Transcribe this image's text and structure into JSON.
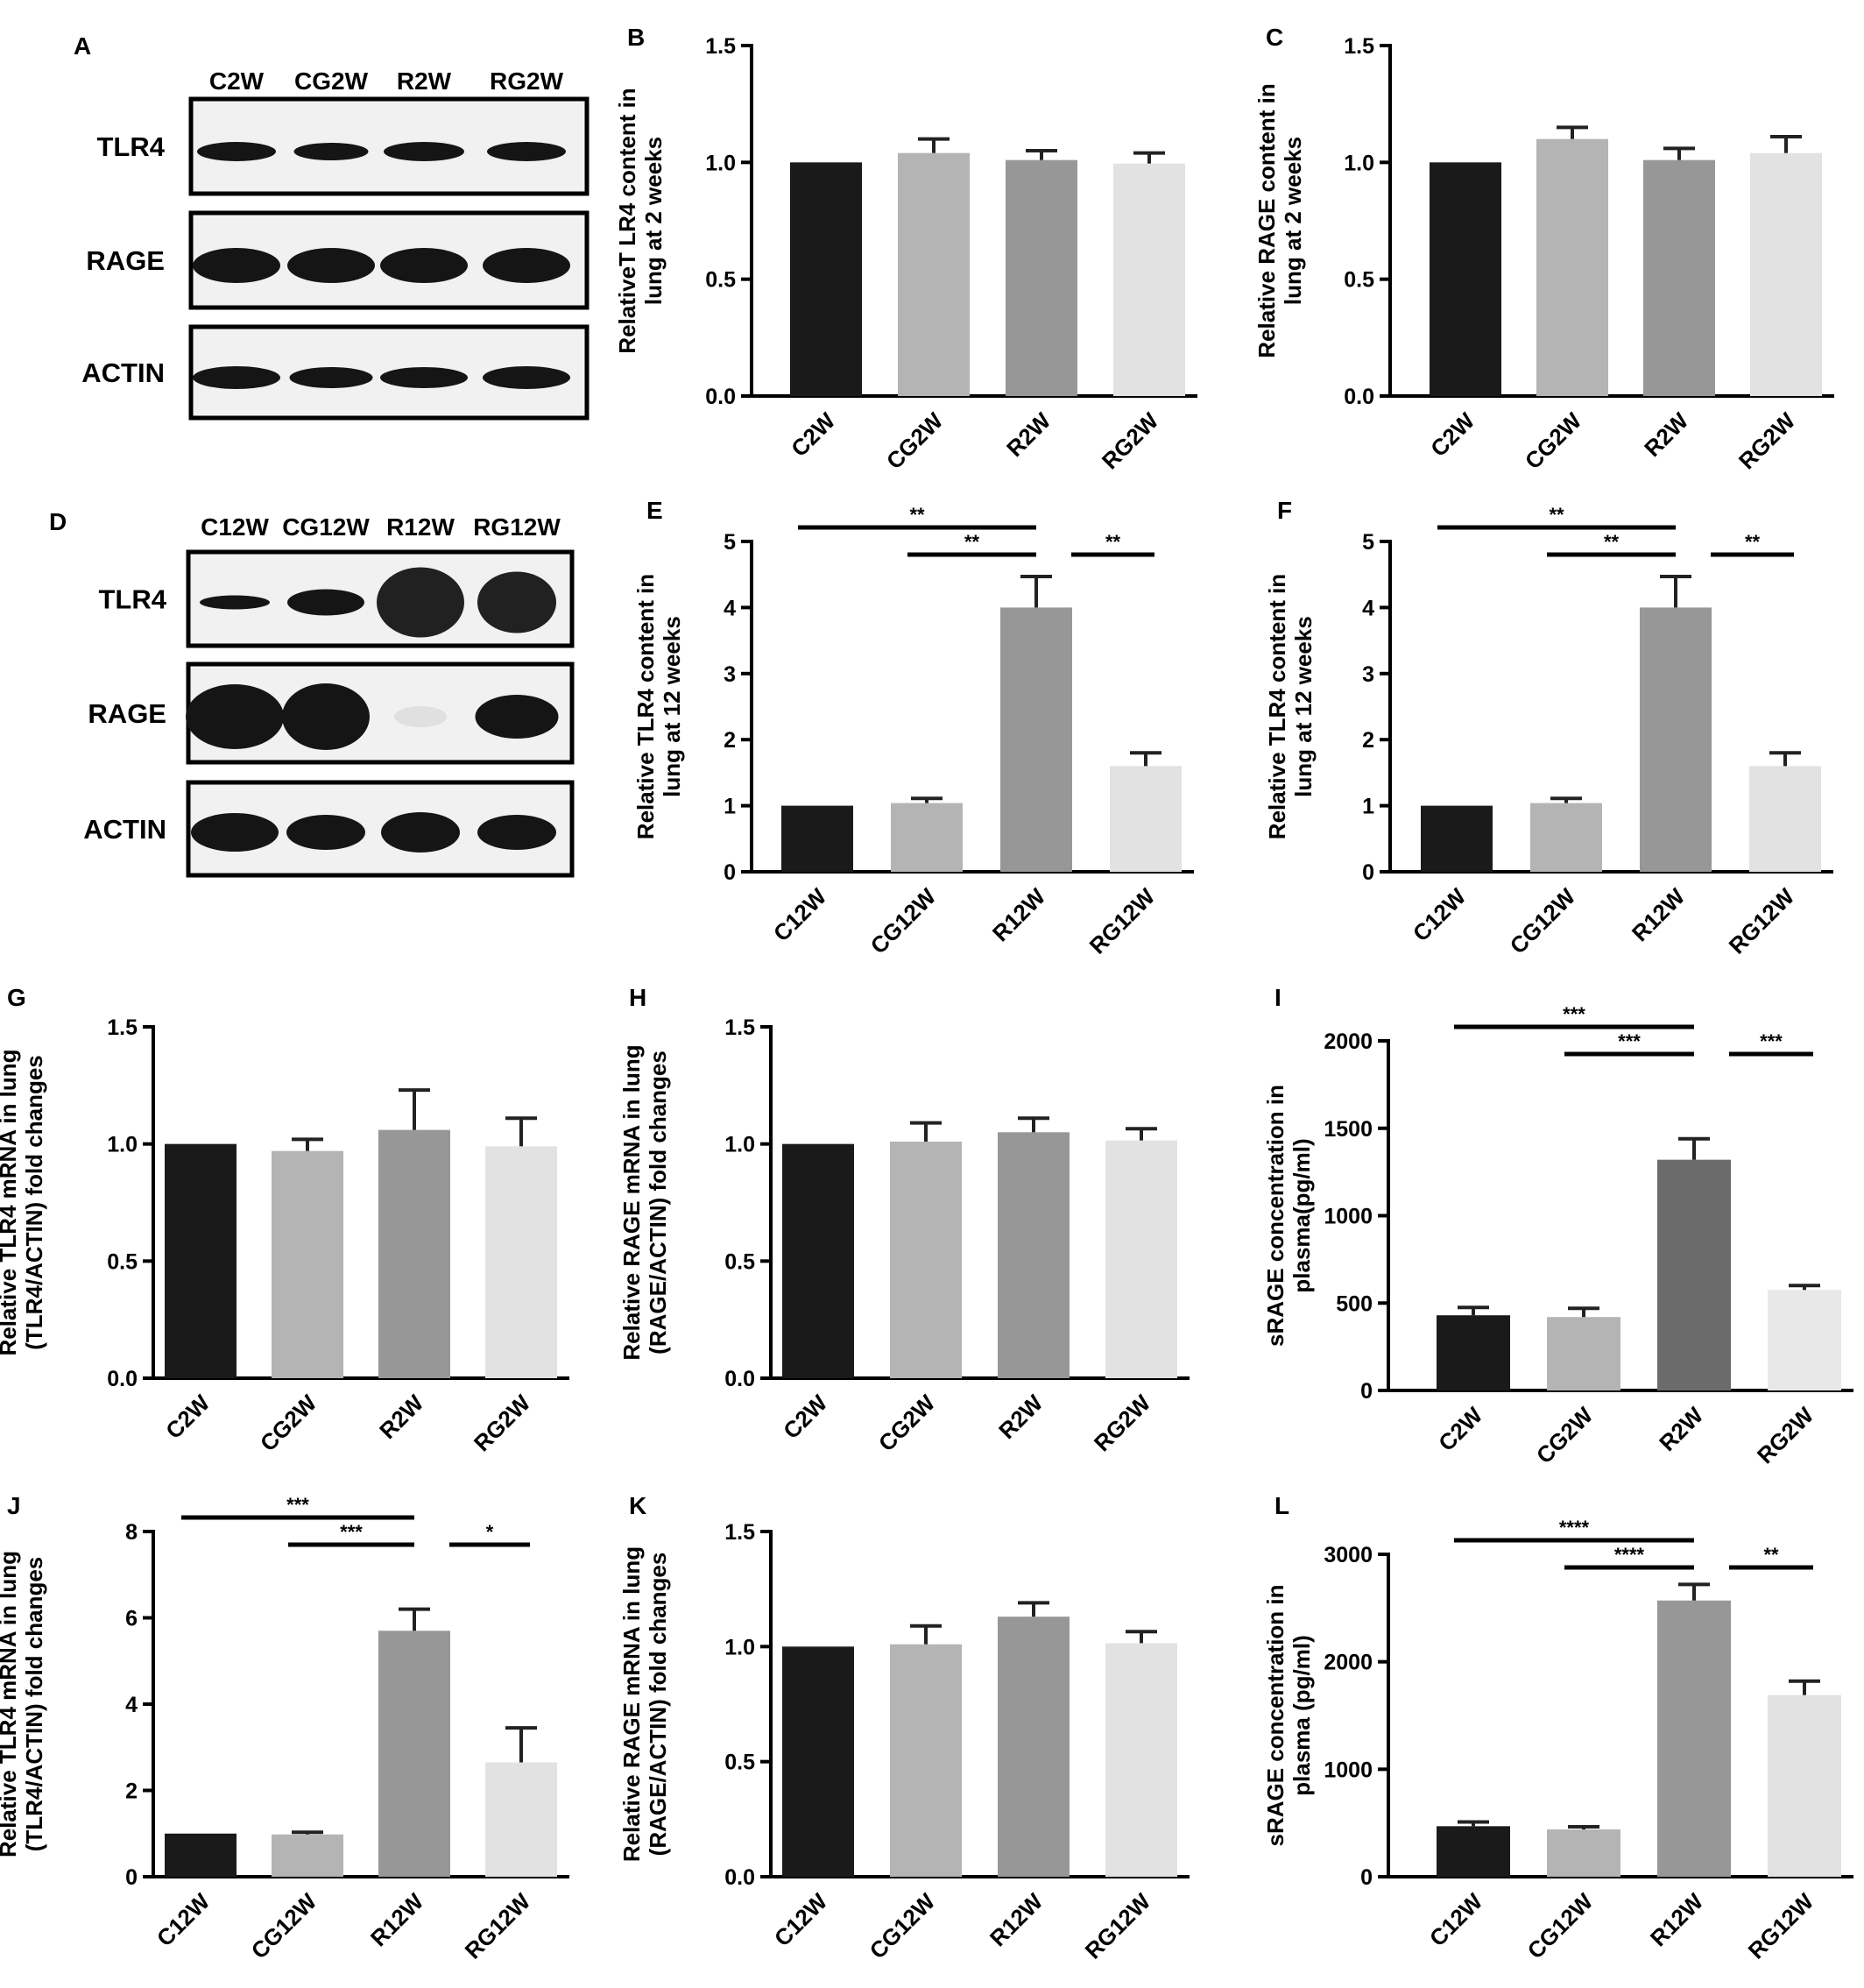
{
  "blots": [
    {
      "label": "A",
      "lanes": [
        "C2W",
        "CG2W",
        "R2W",
        "RG2W"
      ],
      "rows": [
        {
          "name": "TLR4"
        },
        {
          "name": "RAGE"
        },
        {
          "name": "ACTIN"
        }
      ]
    },
    {
      "label": "D",
      "lanes": [
        "C12W",
        "CG12W",
        "R12W",
        "RG12W"
      ],
      "rows": [
        {
          "name": "TLR4"
        },
        {
          "name": "RAGE"
        },
        {
          "name": "ACTIN"
        }
      ]
    }
  ],
  "chart_data": [
    {
      "label": "B",
      "type": "bar",
      "ylabel": [
        "RelativeT LR4 content in",
        "lung at 2 weeks"
      ],
      "categories": [
        "C2W",
        "CG2W",
        "R2W",
        "RG2W"
      ],
      "values": [
        1.0,
        1.04,
        1.01,
        0.995
      ],
      "errors": [
        0,
        0.06,
        0.04,
        0.045
      ],
      "ylim": [
        0,
        1.5
      ],
      "yticks": [
        "0.0",
        "0.5",
        "1.0",
        "1.5"
      ],
      "colors": [
        "#1a1a1a",
        "#b4b4b4",
        "#979797",
        "#e2e2e2"
      ],
      "sig": []
    },
    {
      "label": "C",
      "type": "bar",
      "ylabel": [
        "Relative RAGE content in",
        "lung at 2 weeks"
      ],
      "categories": [
        "C2W",
        "CG2W",
        "R2W",
        "RG2W"
      ],
      "values": [
        1.0,
        1.1,
        1.01,
        1.04
      ],
      "errors": [
        0,
        0.05,
        0.05,
        0.07
      ],
      "ylim": [
        0,
        1.5
      ],
      "yticks": [
        "0.0",
        "0.5",
        "1.0",
        "1.5"
      ],
      "colors": [
        "#1a1a1a",
        "#b4b4b4",
        "#979797",
        "#e2e2e2"
      ],
      "sig": []
    },
    {
      "label": "E",
      "type": "bar",
      "ylabel": [
        "Relative TLR4 content in",
        "lung at 12 weeks"
      ],
      "categories": [
        "C12W",
        "CG12W",
        "R12W",
        "RG12W"
      ],
      "values": [
        1.0,
        1.04,
        4.0,
        1.6
      ],
      "errors": [
        0,
        0.07,
        0.47,
        0.2
      ],
      "ylim": [
        0,
        5
      ],
      "yticks": [
        "0",
        "1",
        "2",
        "3",
        "4",
        "5"
      ],
      "colors": [
        "#1a1a1a",
        "#b4b4b4",
        "#979797",
        "#e2e2e2"
      ],
      "sig": [
        {
          "from": 0,
          "to": 2,
          "level": 0,
          "text": "**"
        },
        {
          "from": 1,
          "to": 2,
          "level": 1,
          "text": "**"
        },
        {
          "from": 2,
          "to": 3,
          "level": 1,
          "text": "**"
        }
      ]
    },
    {
      "label": "F",
      "type": "bar",
      "ylabel": [
        "Relative TLR4 content in",
        "lung at 12 weeks"
      ],
      "categories": [
        "C12W",
        "CG12W",
        "R12W",
        "RG12W"
      ],
      "values": [
        1.0,
        1.04,
        4.0,
        1.6
      ],
      "errors": [
        0,
        0.07,
        0.47,
        0.2
      ],
      "ylim": [
        0,
        5
      ],
      "yticks": [
        "0",
        "1",
        "2",
        "3",
        "4",
        "5"
      ],
      "colors": [
        "#1a1a1a",
        "#b4b4b4",
        "#979797",
        "#e2e2e2"
      ],
      "sig": [
        {
          "from": 0,
          "to": 2,
          "level": 0,
          "text": "**"
        },
        {
          "from": 1,
          "to": 2,
          "level": 1,
          "text": "**"
        },
        {
          "from": 2,
          "to": 3,
          "level": 1,
          "text": "**"
        }
      ]
    },
    {
      "label": "G",
      "type": "bar",
      "ylabel": [
        "Relative TLR4 mRNA in lung",
        "(TLR4/ACTIN) fold changes"
      ],
      "categories": [
        "C2W",
        "CG2W",
        "R2W",
        "RG2W"
      ],
      "values": [
        1.0,
        0.97,
        1.06,
        0.99
      ],
      "errors": [
        0,
        0.05,
        0.17,
        0.12
      ],
      "ylim": [
        0,
        1.5
      ],
      "yticks": [
        "0.0",
        "0.5",
        "1.0",
        "1.5"
      ],
      "colors": [
        "#1a1a1a",
        "#b4b4b4",
        "#979797",
        "#e2e2e2"
      ],
      "sig": []
    },
    {
      "label": "H",
      "type": "bar",
      "ylabel": [
        "Relative RAGE mRNA in lung",
        "(RAGE/ACTIN) fold changes"
      ],
      "categories": [
        "C2W",
        "CG2W",
        "R2W",
        "RG2W"
      ],
      "values": [
        1.0,
        1.01,
        1.05,
        1.015
      ],
      "errors": [
        0,
        0.08,
        0.06,
        0.05
      ],
      "ylim": [
        0,
        1.5
      ],
      "yticks": [
        "0.0",
        "0.5",
        "1.0",
        "1.5"
      ],
      "colors": [
        "#1a1a1a",
        "#b4b4b4",
        "#979797",
        "#e2e2e2"
      ],
      "sig": []
    },
    {
      "label": "I",
      "type": "bar",
      "ylabel": [
        "sRAGE concentration in",
        "plasma(pg/ml)"
      ],
      "categories": [
        "C2W",
        "CG2W",
        "R2W",
        "RG2W"
      ],
      "values": [
        430,
        420,
        1320,
        575
      ],
      "errors": [
        45,
        50,
        120,
        25
      ],
      "ylim": [
        0,
        2000
      ],
      "yticks": [
        "0",
        "500",
        "1000",
        "1500",
        "2000"
      ],
      "colors": [
        "#1a1a1a",
        "#b4b4b4",
        "#6b6b6b",
        "#e8e8e8"
      ],
      "sig": [
        {
          "from": 0,
          "to": 2,
          "level": 0,
          "text": "***"
        },
        {
          "from": 1,
          "to": 2,
          "level": 1,
          "text": "***"
        },
        {
          "from": 2,
          "to": 3,
          "level": 1,
          "text": "***"
        }
      ]
    },
    {
      "label": "J",
      "type": "bar",
      "ylabel": [
        "Relative TLR4 mRNA in lung",
        "(TLR4/ACTIN) fold changes"
      ],
      "categories": [
        "C12W",
        "CG12W",
        "R12W",
        "RG12W"
      ],
      "values": [
        1.0,
        0.98,
        5.7,
        2.65
      ],
      "errors": [
        0,
        0.05,
        0.5,
        0.8
      ],
      "ylim": [
        0,
        8
      ],
      "yticks": [
        "0",
        "2",
        "4",
        "6",
        "8"
      ],
      "colors": [
        "#1a1a1a",
        "#b4b4b4",
        "#979797",
        "#e2e2e2"
      ],
      "sig": [
        {
          "from": 0,
          "to": 2,
          "level": 0,
          "text": "***"
        },
        {
          "from": 1,
          "to": 2,
          "level": 1,
          "text": "***"
        },
        {
          "from": 2,
          "to": 3,
          "level": 1,
          "text": "*"
        }
      ]
    },
    {
      "label": "K",
      "type": "bar",
      "ylabel": [
        "Relative RAGE mRNA in lung",
        "(RAGE/ACTIN) fold changes"
      ],
      "categories": [
        "C12W",
        "CG12W",
        "R12W",
        "RG12W"
      ],
      "values": [
        1.0,
        1.01,
        1.13,
        1.015
      ],
      "errors": [
        0,
        0.08,
        0.06,
        0.05
      ],
      "ylim": [
        0,
        1.5
      ],
      "yticks": [
        "0.0",
        "0.5",
        "1.0",
        "1.5"
      ],
      "colors": [
        "#1a1a1a",
        "#b4b4b4",
        "#979797",
        "#e2e2e2"
      ],
      "sig": []
    },
    {
      "label": "L",
      "type": "bar",
      "ylabel": [
        "sRAGE concentration in",
        "plasma (pg/ml)"
      ],
      "categories": [
        "C12W",
        "CG12W",
        "R12W",
        "RG12W"
      ],
      "values": [
        470,
        440,
        2570,
        1690
      ],
      "errors": [
        40,
        25,
        150,
        130
      ],
      "ylim": [
        0,
        3000
      ],
      "yticks": [
        "0",
        "1000",
        "2000",
        "3000"
      ],
      "colors": [
        "#1a1a1a",
        "#b4b4b4",
        "#979797",
        "#e2e2e2"
      ],
      "sig": [
        {
          "from": 0,
          "to": 2,
          "level": 0,
          "text": "****"
        },
        {
          "from": 1,
          "to": 2,
          "level": 1,
          "text": "****"
        },
        {
          "from": 2,
          "to": 3,
          "level": 1,
          "text": "**"
        }
      ]
    }
  ]
}
